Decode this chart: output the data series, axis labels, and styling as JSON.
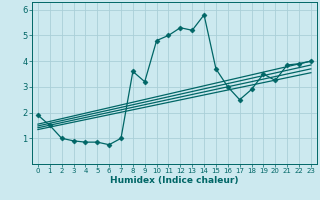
{
  "xlabel": "Humidex (Indice chaleur)",
  "ylabel": "",
  "xlim": [
    -0.5,
    23.5
  ],
  "ylim": [
    0,
    6.3
  ],
  "xticks": [
    0,
    1,
    2,
    3,
    4,
    5,
    6,
    7,
    8,
    9,
    10,
    11,
    12,
    13,
    14,
    15,
    16,
    17,
    18,
    19,
    20,
    21,
    22,
    23
  ],
  "yticks": [
    1,
    2,
    3,
    4,
    5,
    6
  ],
  "bg_color": "#cce9ef",
  "grid_color": "#aacfd8",
  "line_color": "#006666",
  "line_width": 0.9,
  "marker": "D",
  "marker_size": 2.5,
  "series": [
    [
      0,
      1.9
    ],
    [
      1,
      1.5
    ],
    [
      2,
      1.0
    ],
    [
      3,
      0.9
    ],
    [
      4,
      0.85
    ],
    [
      5,
      0.85
    ],
    [
      6,
      0.75
    ],
    [
      7,
      1.0
    ],
    [
      8,
      3.6
    ],
    [
      9,
      3.2
    ],
    [
      10,
      4.8
    ],
    [
      11,
      5.0
    ],
    [
      12,
      5.3
    ],
    [
      13,
      5.2
    ],
    [
      14,
      5.8
    ],
    [
      15,
      3.7
    ],
    [
      16,
      3.0
    ],
    [
      17,
      2.5
    ],
    [
      18,
      2.9
    ],
    [
      19,
      3.5
    ],
    [
      20,
      3.25
    ],
    [
      21,
      3.85
    ],
    [
      22,
      3.9
    ],
    [
      23,
      4.0
    ]
  ],
  "trend_lines": [
    {
      "x": [
        0,
        23
      ],
      "y": [
        1.55,
        4.0
      ]
    },
    {
      "x": [
        0,
        23
      ],
      "y": [
        1.48,
        3.85
      ]
    },
    {
      "x": [
        0,
        23
      ],
      "y": [
        1.41,
        3.7
      ]
    },
    {
      "x": [
        0,
        23
      ],
      "y": [
        1.34,
        3.55
      ]
    }
  ]
}
